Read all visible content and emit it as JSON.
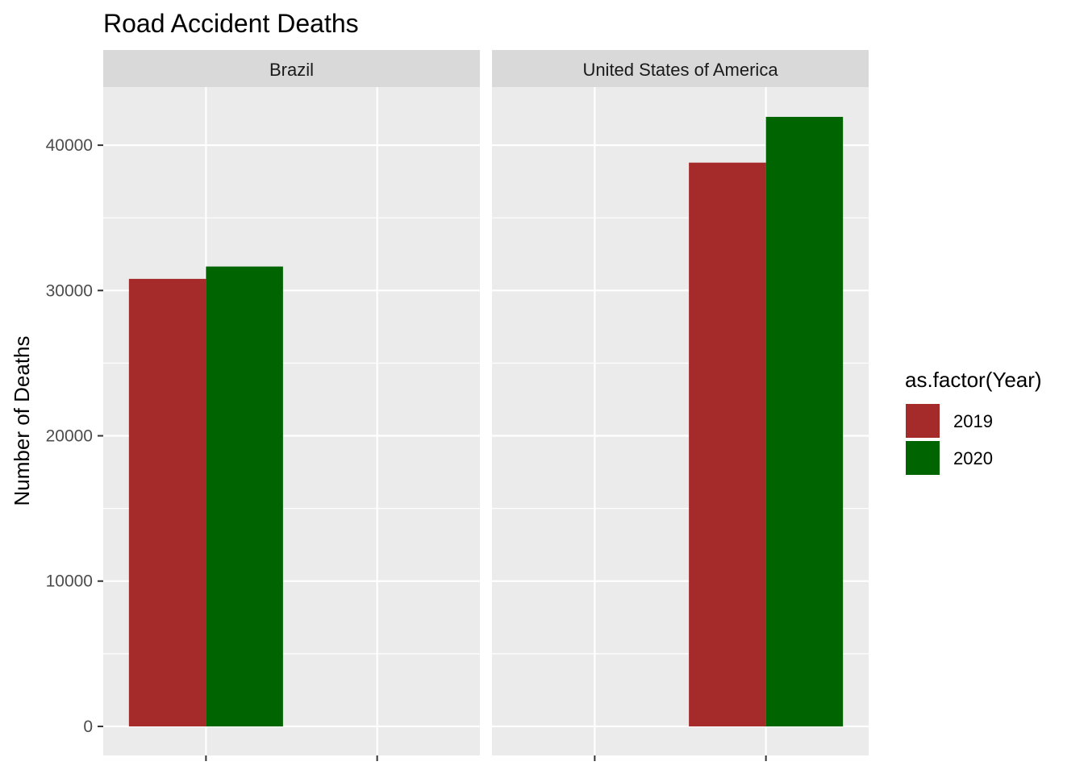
{
  "chart_data": {
    "type": "bar",
    "title": "Road Accident Deaths",
    "ylabel": "Number of Deaths",
    "xlabel": "",
    "ylim": [
      -2000,
      44000
    ],
    "y_ticks": [
      0,
      10000,
      20000,
      30000,
      40000
    ],
    "y_tick_labels": [
      "0",
      "10000",
      "20000",
      "30000",
      "40000"
    ],
    "grid": true,
    "legend": {
      "title": "as.factor(Year)",
      "position": "right",
      "entries": [
        {
          "label": "2019",
          "color": "#A52A2A"
        },
        {
          "label": "2020",
          "color": "#006400"
        }
      ]
    },
    "facets": [
      {
        "name": "Brazil",
        "x_slot": 1,
        "series": [
          {
            "year": "2019",
            "value": 30800
          },
          {
            "year": "2020",
            "value": 31650
          }
        ]
      },
      {
        "name": "United States of America",
        "x_slot": 2,
        "series": [
          {
            "year": "2019",
            "value": 38800
          },
          {
            "year": "2020",
            "value": 41950
          }
        ]
      }
    ],
    "colors": {
      "panel_background": "#EBEBEB",
      "strip_background": "#D9D9D9",
      "grid": "#FFFFFF"
    }
  }
}
